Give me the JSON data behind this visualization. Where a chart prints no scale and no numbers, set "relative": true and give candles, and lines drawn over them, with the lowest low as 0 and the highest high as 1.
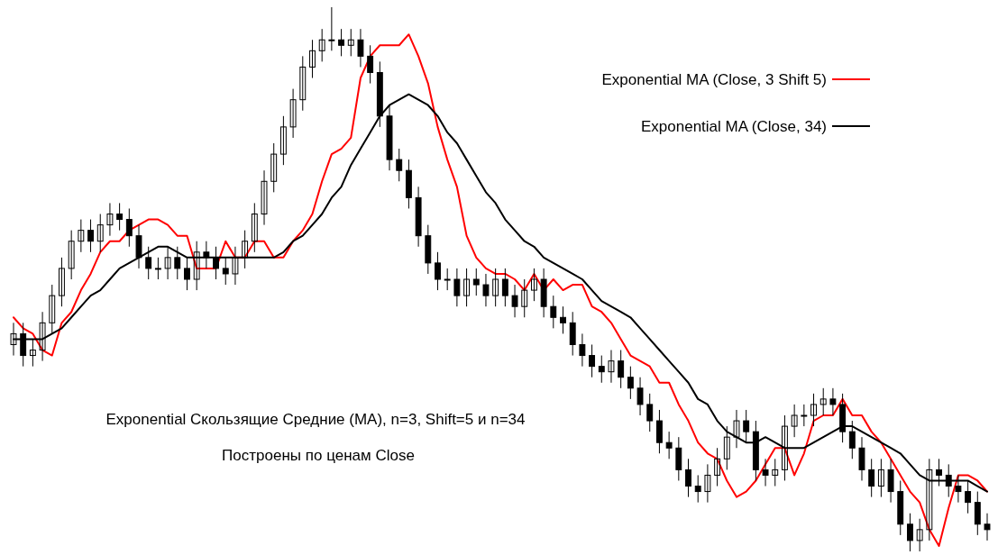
{
  "chart_data": {
    "type": "candlestick",
    "relative": true,
    "categories": [
      null,
      null,
      null,
      null,
      null,
      null,
      null,
      null,
      null,
      null,
      null,
      null,
      null,
      null,
      null,
      null,
      null,
      null,
      null,
      null,
      null,
      null,
      null,
      null,
      null,
      null,
      null,
      null,
      null,
      null,
      null,
      null,
      null,
      null,
      null,
      null,
      null,
      null,
      null,
      null,
      null,
      null,
      null,
      null,
      null,
      null,
      null,
      null,
      null,
      null,
      null,
      null,
      null,
      null,
      null,
      null,
      null,
      null,
      null,
      null,
      null,
      null,
      null,
      null,
      null,
      null,
      null,
      null,
      null,
      null,
      null,
      null,
      null,
      null,
      null,
      null,
      null,
      null,
      null,
      null,
      null,
      null,
      null,
      null,
      null,
      null,
      null,
      null,
      null,
      null,
      null,
      null,
      null,
      null,
      null,
      null,
      null,
      null,
      null,
      null,
      null,
      null
    ],
    "ohlc": [
      [
        0.38,
        0.42,
        0.36,
        0.4
      ],
      [
        0.4,
        0.42,
        0.34,
        0.36
      ],
      [
        0.36,
        0.39,
        0.34,
        0.37
      ],
      [
        0.37,
        0.44,
        0.35,
        0.42
      ],
      [
        0.42,
        0.49,
        0.4,
        0.47
      ],
      [
        0.47,
        0.54,
        0.45,
        0.52
      ],
      [
        0.52,
        0.59,
        0.5,
        0.57
      ],
      [
        0.57,
        0.61,
        0.55,
        0.59
      ],
      [
        0.59,
        0.61,
        0.55,
        0.57
      ],
      [
        0.57,
        0.62,
        0.55,
        0.6
      ],
      [
        0.6,
        0.64,
        0.58,
        0.62
      ],
      [
        0.62,
        0.64,
        0.59,
        0.61
      ],
      [
        0.61,
        0.63,
        0.56,
        0.58
      ],
      [
        0.58,
        0.6,
        0.52,
        0.54
      ],
      [
        0.54,
        0.56,
        0.5,
        0.52
      ],
      [
        0.52,
        0.54,
        0.5,
        0.52
      ],
      [
        0.52,
        0.56,
        0.5,
        0.54
      ],
      [
        0.54,
        0.56,
        0.5,
        0.52
      ],
      [
        0.52,
        0.54,
        0.48,
        0.5
      ],
      [
        0.5,
        0.57,
        0.48,
        0.55
      ],
      [
        0.55,
        0.57,
        0.52,
        0.54
      ],
      [
        0.54,
        0.56,
        0.5,
        0.52
      ],
      [
        0.52,
        0.54,
        0.49,
        0.51
      ],
      [
        0.51,
        0.56,
        0.49,
        0.54
      ],
      [
        0.54,
        0.59,
        0.52,
        0.57
      ],
      [
        0.57,
        0.64,
        0.55,
        0.62
      ],
      [
        0.62,
        0.7,
        0.6,
        0.68
      ],
      [
        0.68,
        0.75,
        0.66,
        0.73
      ],
      [
        0.73,
        0.8,
        0.71,
        0.78
      ],
      [
        0.78,
        0.85,
        0.76,
        0.83
      ],
      [
        0.83,
        0.91,
        0.81,
        0.89
      ],
      [
        0.89,
        0.94,
        0.87,
        0.92
      ],
      [
        0.92,
        0.96,
        0.9,
        0.94
      ],
      [
        0.94,
        1.0,
        0.92,
        0.94
      ],
      [
        0.94,
        0.96,
        0.91,
        0.93
      ],
      [
        0.93,
        0.96,
        0.91,
        0.94
      ],
      [
        0.94,
        0.96,
        0.89,
        0.91
      ],
      [
        0.91,
        0.93,
        0.86,
        0.88
      ],
      [
        0.88,
        0.9,
        0.78,
        0.8
      ],
      [
        0.8,
        0.82,
        0.7,
        0.72
      ],
      [
        0.72,
        0.74,
        0.68,
        0.7
      ],
      [
        0.7,
        0.72,
        0.63,
        0.65
      ],
      [
        0.65,
        0.67,
        0.56,
        0.58
      ],
      [
        0.58,
        0.6,
        0.51,
        0.53
      ],
      [
        0.53,
        0.55,
        0.48,
        0.5
      ],
      [
        0.5,
        0.52,
        0.48,
        0.5
      ],
      [
        0.5,
        0.52,
        0.45,
        0.47
      ],
      [
        0.47,
        0.52,
        0.45,
        0.5
      ],
      [
        0.5,
        0.52,
        0.47,
        0.49
      ],
      [
        0.49,
        0.51,
        0.45,
        0.47
      ],
      [
        0.47,
        0.52,
        0.45,
        0.5
      ],
      [
        0.5,
        0.52,
        0.45,
        0.47
      ],
      [
        0.47,
        0.49,
        0.43,
        0.45
      ],
      [
        0.45,
        0.5,
        0.43,
        0.48
      ],
      [
        0.48,
        0.52,
        0.46,
        0.5
      ],
      [
        0.5,
        0.52,
        0.43,
        0.45
      ],
      [
        0.45,
        0.47,
        0.41,
        0.43
      ],
      [
        0.43,
        0.45,
        0.4,
        0.42
      ],
      [
        0.42,
        0.44,
        0.36,
        0.38
      ],
      [
        0.38,
        0.4,
        0.34,
        0.36
      ],
      [
        0.36,
        0.38,
        0.32,
        0.34
      ],
      [
        0.34,
        0.36,
        0.31,
        0.33
      ],
      [
        0.33,
        0.37,
        0.31,
        0.35
      ],
      [
        0.35,
        0.37,
        0.3,
        0.32
      ],
      [
        0.32,
        0.34,
        0.28,
        0.3
      ],
      [
        0.3,
        0.32,
        0.25,
        0.27
      ],
      [
        0.27,
        0.29,
        0.22,
        0.24
      ],
      [
        0.24,
        0.26,
        0.18,
        0.2
      ],
      [
        0.2,
        0.22,
        0.17,
        0.19
      ],
      [
        0.19,
        0.21,
        0.13,
        0.15
      ],
      [
        0.15,
        0.17,
        0.1,
        0.12
      ],
      [
        0.12,
        0.14,
        0.09,
        0.11
      ],
      [
        0.11,
        0.16,
        0.09,
        0.14
      ],
      [
        0.14,
        0.19,
        0.12,
        0.17
      ],
      [
        0.17,
        0.23,
        0.15,
        0.21
      ],
      [
        0.21,
        0.26,
        0.19,
        0.24
      ],
      [
        0.24,
        0.26,
        0.2,
        0.22
      ],
      [
        0.22,
        0.24,
        0.13,
        0.15
      ],
      [
        0.15,
        0.17,
        0.12,
        0.14
      ],
      [
        0.14,
        0.17,
        0.12,
        0.15
      ],
      [
        0.15,
        0.25,
        0.13,
        0.23
      ],
      [
        0.23,
        0.27,
        0.21,
        0.25
      ],
      [
        0.25,
        0.27,
        0.23,
        0.25
      ],
      [
        0.25,
        0.29,
        0.23,
        0.27
      ],
      [
        0.27,
        0.3,
        0.25,
        0.28
      ],
      [
        0.28,
        0.3,
        0.25,
        0.27
      ],
      [
        0.27,
        0.29,
        0.2,
        0.22
      ],
      [
        0.22,
        0.24,
        0.17,
        0.19
      ],
      [
        0.19,
        0.21,
        0.13,
        0.15
      ],
      [
        0.15,
        0.17,
        0.1,
        0.12
      ],
      [
        0.12,
        0.17,
        0.1,
        0.15
      ],
      [
        0.15,
        0.17,
        0.09,
        0.11
      ],
      [
        0.11,
        0.13,
        0.03,
        0.05
      ],
      [
        0.05,
        0.07,
        0.0,
        0.02
      ],
      [
        0.02,
        0.06,
        0.0,
        0.04
      ],
      [
        0.04,
        0.17,
        0.02,
        0.15
      ],
      [
        0.15,
        0.17,
        0.12,
        0.14
      ],
      [
        0.14,
        0.16,
        0.1,
        0.12
      ],
      [
        0.12,
        0.14,
        0.09,
        0.11
      ],
      [
        0.11,
        0.13,
        0.07,
        0.09
      ],
      [
        0.09,
        0.11,
        0.03,
        0.05
      ],
      [
        0.05,
        0.07,
        0.02,
        0.04
      ]
    ],
    "series": [
      {
        "type": "line",
        "name": "Exponential MA (Close, 3 Shift 5)",
        "color": "#ff0000",
        "values": [
          0.43,
          0.41,
          0.4,
          0.37,
          0.36,
          0.42,
          0.44,
          0.48,
          0.51,
          0.55,
          0.57,
          0.57,
          0.59,
          0.6,
          0.61,
          0.61,
          0.6,
          0.58,
          0.58,
          0.52,
          0.52,
          0.52,
          0.57,
          0.54,
          0.54,
          0.57,
          0.57,
          0.54,
          0.54,
          0.57,
          0.59,
          0.62,
          0.68,
          0.73,
          0.74,
          0.76,
          0.87,
          0.91,
          0.93,
          0.93,
          0.93,
          0.95,
          0.91,
          0.86,
          0.78,
          0.72,
          0.67,
          0.58,
          0.54,
          0.52,
          0.51,
          0.51,
          0.5,
          0.48,
          0.51,
          0.48,
          0.5,
          0.48,
          0.49,
          0.49,
          0.45,
          0.44,
          0.42,
          0.39,
          0.36,
          0.35,
          0.34,
          0.31,
          0.31,
          0.27,
          0.24,
          0.2,
          0.18,
          0.17,
          0.13,
          0.1,
          0.11,
          0.13,
          0.16,
          0.19,
          0.19,
          0.14,
          0.18,
          0.24,
          0.25,
          0.25,
          0.28,
          0.25,
          0.25,
          0.22,
          0.2,
          0.17,
          0.14,
          0.11,
          0.09,
          0.04,
          0.01,
          0.08,
          0.14,
          0.14,
          0.13,
          0.11
        ]
      },
      {
        "type": "line",
        "name": "Exponential MA (Close, 34)",
        "color": "#000000",
        "values": [
          0.39,
          0.39,
          0.39,
          0.39,
          0.4,
          0.41,
          0.43,
          0.45,
          0.47,
          0.48,
          0.5,
          0.52,
          0.53,
          0.54,
          0.55,
          0.56,
          0.56,
          0.55,
          0.54,
          0.54,
          0.54,
          0.54,
          0.54,
          0.54,
          0.54,
          0.54,
          0.54,
          0.54,
          0.55,
          0.57,
          0.58,
          0.6,
          0.62,
          0.65,
          0.67,
          0.71,
          0.74,
          0.77,
          0.8,
          0.82,
          0.83,
          0.84,
          0.83,
          0.82,
          0.8,
          0.77,
          0.75,
          0.72,
          0.69,
          0.66,
          0.64,
          0.61,
          0.59,
          0.57,
          0.56,
          0.54,
          0.53,
          0.52,
          0.51,
          0.5,
          0.48,
          0.46,
          0.45,
          0.44,
          0.43,
          0.41,
          0.39,
          0.37,
          0.35,
          0.33,
          0.31,
          0.28,
          0.27,
          0.24,
          0.22,
          0.21,
          0.2,
          0.2,
          0.21,
          0.2,
          0.19,
          0.19,
          0.19,
          0.2,
          0.21,
          0.22,
          0.23,
          0.23,
          0.22,
          0.21,
          0.2,
          0.19,
          0.18,
          0.16,
          0.14,
          0.13,
          0.13,
          0.13,
          0.13,
          0.13,
          0.12,
          0.11
        ]
      }
    ],
    "legend": "top right",
    "annotations": [
      "Exponential Скользящие Средние (MA), n=3, Shift=5 и n=34",
      "Построены по ценам  Close"
    ]
  }
}
